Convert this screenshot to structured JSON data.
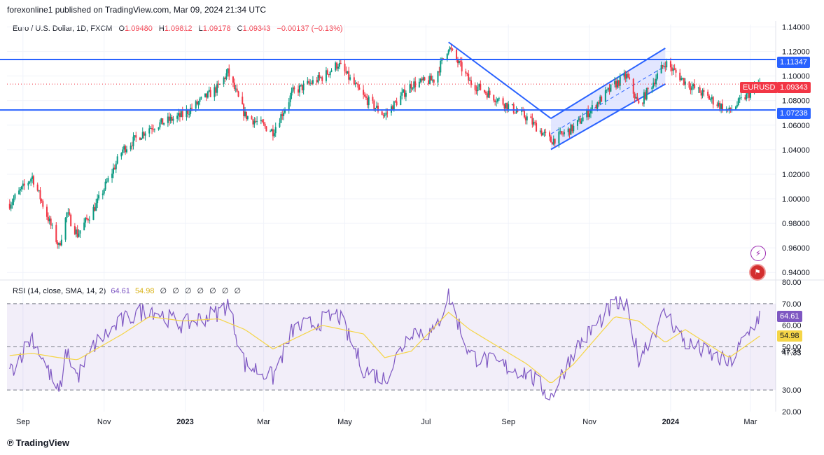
{
  "header": {
    "published": "forexonline1 published on TradingView.com, Mar 09, 2024 21:34 UTC"
  },
  "legend": {
    "symbol": "Euro / U.S. Dollar, 1D, FXCM",
    "o_label": "O",
    "o": "1.09480",
    "h_label": "H",
    "h": "1.09812",
    "l_label": "L",
    "l": "1.09178",
    "c_label": "C",
    "c": "1.09343",
    "change": "−0.00137 (−0.13%)"
  },
  "rsi_legend": {
    "label": "RSI (14, close, SMA, 14, 2)",
    "rsi": "64.61",
    "sma": "54.98",
    "na": [
      "∅",
      "∅",
      "∅",
      "∅",
      "∅",
      "∅",
      "∅"
    ]
  },
  "badges": {
    "upper_level": "1.11347",
    "lower_level": "1.07238",
    "symbol_tag": "EURUSD",
    "last_price": "1.09343",
    "rsi_value": "64.61",
    "sma_value": "54.98",
    "rsi_extra": "47.34"
  },
  "footer": {
    "brand": "TradingView"
  },
  "icons": {
    "alert": "lightning-icon",
    "flag": "us-flag-icon"
  },
  "colors": {
    "up": "#089981",
    "down": "#f23645",
    "line": "#2962ff",
    "rsi": "#7e57c2",
    "sma": "#f5d547",
    "channel_fill": "#d6dcff"
  },
  "chart_data": [
    {
      "type": "candlestick",
      "title": "Euro / U.S. Dollar, 1D, FXCM",
      "y_ticks": [
        "1.14000",
        "1.12000",
        "1.10000",
        "1.08000",
        "1.06000",
        "1.04000",
        "1.02000",
        "1.00000",
        "0.98000",
        "0.96000",
        "0.94000"
      ],
      "ylim": [
        0.935,
        1.142
      ],
      "x_ticks": [
        "Sep",
        "Nov",
        "2023",
        "Mar",
        "May",
        "Jul",
        "Sep",
        "Nov",
        "2024",
        "Mar"
      ],
      "horizontal_levels": [
        1.11347,
        1.07238
      ],
      "last_price": 1.09343,
      "trendline": [
        [
          "2023-07-18",
          1.1276
        ],
        [
          "2023-10-03",
          1.0655
        ]
      ],
      "ascending_channel": {
        "upper": [
          [
            "2023-10-03",
            1.0655
          ],
          [
            "2023-12-28",
            1.1227
          ]
        ],
        "lower": [
          [
            "2023-10-03",
            1.0402
          ],
          [
            "2023-12-28",
            1.0935
          ]
        ]
      },
      "price_path": [
        [
          "2022-08-22",
          0.996
        ],
        [
          "2022-09-08",
          1.018
        ],
        [
          "2022-09-28",
          0.961
        ],
        [
          "2022-10-04",
          0.988
        ],
        [
          "2022-10-12",
          0.971
        ],
        [
          "2022-10-26",
          0.995
        ],
        [
          "2022-11-15",
          1.04
        ],
        [
          "2022-12-05",
          1.058
        ],
        [
          "2022-12-30",
          1.068
        ],
        [
          "2023-01-26",
          1.091
        ],
        [
          "2023-02-02",
          1.103
        ],
        [
          "2023-02-15",
          1.068
        ],
        [
          "2023-03-08",
          1.055
        ],
        [
          "2023-03-23",
          1.087
        ],
        [
          "2023-04-14",
          1.099
        ],
        [
          "2023-04-26",
          1.11
        ],
        [
          "2023-05-15",
          1.083
        ],
        [
          "2023-05-31",
          1.068
        ],
        [
          "2023-06-20",
          1.093
        ],
        [
          "2023-07-07",
          1.097
        ],
        [
          "2023-07-18",
          1.124
        ],
        [
          "2023-08-03",
          1.095
        ],
        [
          "2023-08-24",
          1.081
        ],
        [
          "2023-09-15",
          1.066
        ],
        [
          "2023-10-03",
          1.047
        ],
        [
          "2023-10-20",
          1.058
        ],
        [
          "2023-11-20",
          1.093
        ],
        [
          "2023-11-29",
          1.1
        ],
        [
          "2023-12-08",
          1.076
        ],
        [
          "2023-12-28",
          1.111
        ],
        [
          "2024-01-12",
          1.095
        ],
        [
          "2024-02-14",
          1.071
        ],
        [
          "2024-02-26",
          1.083
        ],
        [
          "2024-03-08",
          1.093
        ]
      ]
    },
    {
      "type": "line",
      "title": "RSI (14, close, SMA, 14, 2)",
      "y_ticks": [
        "80.00",
        "70.00",
        "60.00",
        "50.00",
        "47.33",
        "30.00",
        "20.00"
      ],
      "ylim": [
        20,
        80
      ],
      "bands": [
        70,
        50,
        30
      ],
      "series": [
        {
          "name": "RSI",
          "x": [
            "2022-08-22",
            "2022-09-08",
            "2022-09-28",
            "2022-10-04",
            "2022-10-12",
            "2022-10-26",
            "2022-11-15",
            "2022-12-05",
            "2022-12-30",
            "2023-01-26",
            "2023-02-02",
            "2023-02-15",
            "2023-03-08",
            "2023-03-23",
            "2023-04-14",
            "2023-04-26",
            "2023-05-15",
            "2023-05-31",
            "2023-06-20",
            "2023-07-07",
            "2023-07-18",
            "2023-08-03",
            "2023-08-24",
            "2023-09-15",
            "2023-10-03",
            "2023-10-20",
            "2023-11-20",
            "2023-11-29",
            "2023-12-08",
            "2023-12-28",
            "2024-01-12",
            "2024-02-14",
            "2024-02-26",
            "2024-03-08"
          ],
          "values": [
            38,
            55,
            28,
            48,
            36,
            52,
            62,
            68,
            60,
            66,
            70,
            42,
            36,
            58,
            62,
            65,
            40,
            35,
            58,
            56,
            74,
            46,
            42,
            38,
            27,
            48,
            70,
            68,
            45,
            66,
            52,
            42,
            54,
            64.61
          ]
        },
        {
          "name": "SMA",
          "x": [
            "2022-08-22",
            "2022-09-08",
            "2022-09-28",
            "2022-10-12",
            "2022-11-15",
            "2022-12-05",
            "2022-12-30",
            "2023-01-26",
            "2023-02-15",
            "2023-03-08",
            "2023-04-14",
            "2023-05-15",
            "2023-05-31",
            "2023-06-20",
            "2023-07-18",
            "2023-08-03",
            "2023-09-15",
            "2023-10-03",
            "2023-10-20",
            "2023-11-20",
            "2023-12-08",
            "2023-12-28",
            "2024-01-12",
            "2024-02-14",
            "2024-03-08"
          ],
          "values": [
            46,
            47,
            45,
            44,
            56,
            64,
            62,
            63,
            58,
            49,
            60,
            56,
            45,
            48,
            66,
            58,
            42,
            33,
            42,
            64,
            62,
            52,
            58,
            45,
            54.98
          ]
        }
      ]
    }
  ]
}
